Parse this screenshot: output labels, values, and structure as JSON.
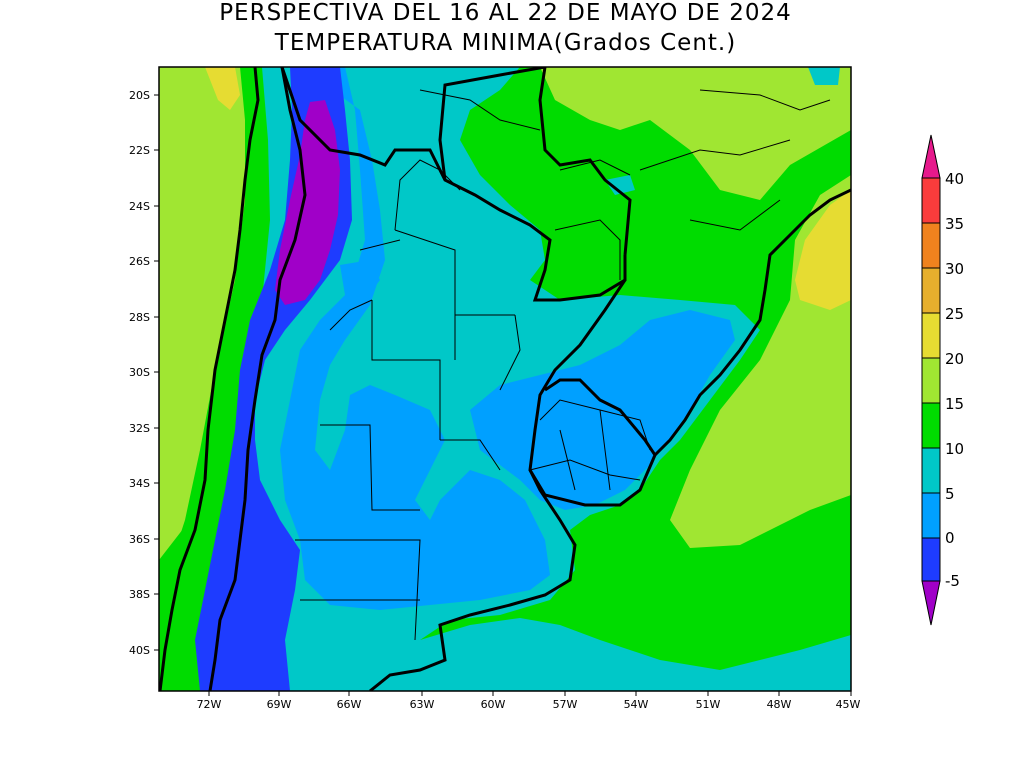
{
  "title": "PERSPECTIVA DEL 16 AL 22 DE MAYO DE 2024",
  "subtitle": "TEMPERATURA MINIMA(Grados Cent.)",
  "lat_labels": [
    "20S",
    "22S",
    "24S",
    "26S",
    "28S",
    "30S",
    "32S",
    "34S",
    "36S",
    "38S",
    "40S"
  ],
  "lon_labels": [
    "72W",
    "69W",
    "66W",
    "63W",
    "60W",
    "57W",
    "54W",
    "51W",
    "48W",
    "45W"
  ],
  "colorbar": {
    "labels": [
      "40",
      "35",
      "30",
      "25",
      "20",
      "15",
      "10",
      "5",
      "0",
      "-5"
    ],
    "colors": {
      "above_40": "#e6198c",
      "35_40": "#fa3c3c",
      "30_35": "#f0821e",
      "25_30": "#e6af2d",
      "20_25": "#e6dc32",
      "15_20": "#a0e632",
      "10_15": "#00dc00",
      "5_10": "#00c8c8",
      "0_5": "#00a0ff",
      "m5_0": "#1e3cff",
      "below_m5": "#a000c8"
    }
  }
}
